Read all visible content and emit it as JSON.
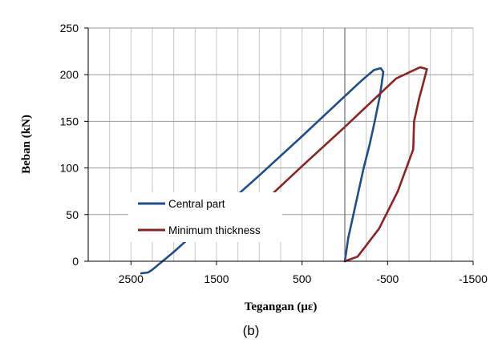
{
  "chart_data": {
    "type": "line",
    "xlabel": "Tegangan (με)",
    "ylabel": "Beban (kN)",
    "caption": "(b)",
    "x_reversed": true,
    "xlim": [
      -1500,
      3000
    ],
    "ylim": [
      0,
      250
    ],
    "x_ticks": [
      2500,
      1500,
      500,
      -500,
      -1500
    ],
    "x_tick_labels": [
      "2500",
      "1500",
      "500",
      "-500",
      "-1500"
    ],
    "y_ticks": [
      0,
      50,
      100,
      150,
      200,
      250
    ],
    "y_tick_labels": [
      "0",
      "50",
      "100",
      "150",
      "200",
      "250"
    ],
    "grid": true,
    "legend_position": "lower-left",
    "series": [
      {
        "name": "Central part",
        "color": "#1f4e8c",
        "points": [
          [
            0,
            0
          ],
          [
            -40,
            25
          ],
          [
            -100,
            50
          ],
          [
            -160,
            75
          ],
          [
            -220,
            100
          ],
          [
            -290,
            125
          ],
          [
            -350,
            150
          ],
          [
            -405,
            175
          ],
          [
            -430,
            190
          ],
          [
            -450,
            203
          ],
          [
            -420,
            207
          ],
          [
            -340,
            205
          ],
          [
            -200,
            194
          ],
          [
            0,
            177
          ],
          [
            500,
            134
          ],
          [
            1000,
            92
          ],
          [
            1500,
            51
          ],
          [
            2000,
            10
          ],
          [
            2250,
            -9
          ],
          [
            2300,
            -12
          ],
          [
            2380,
            -13
          ]
        ]
      },
      {
        "name": "Minimum thickness",
        "color": "#8b2323",
        "points": [
          [
            0,
            0
          ],
          [
            -150,
            5
          ],
          [
            -400,
            35
          ],
          [
            -620,
            75
          ],
          [
            -800,
            120
          ],
          [
            -810,
            150
          ],
          [
            -870,
            175
          ],
          [
            -900,
            185
          ],
          [
            -960,
            206
          ],
          [
            -880,
            208
          ],
          [
            -600,
            196
          ],
          [
            0,
            144
          ],
          [
            500,
            102
          ],
          [
            1000,
            59
          ],
          [
            1100,
            48
          ],
          [
            1170,
            42
          ],
          [
            1190,
            38
          ]
        ]
      }
    ]
  }
}
